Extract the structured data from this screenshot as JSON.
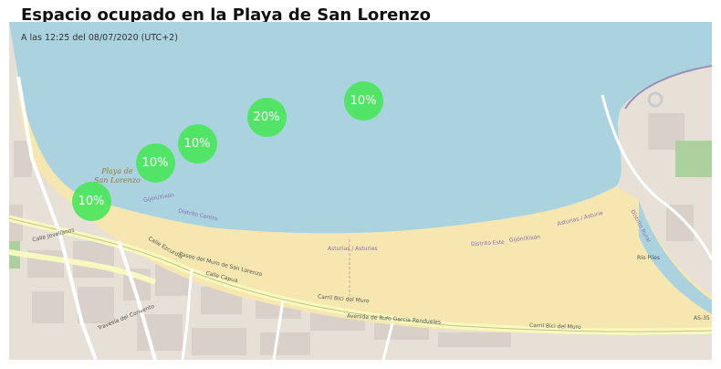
{
  "title": "Espacio ocupado en la Playa de San Lorenzo",
  "subtitle": "A las 12:25 del 08/07/2020 (UTC+2)",
  "colors": {
    "sea": "#aad3df",
    "beach": "#f6e7b0",
    "urban": "#e6e0d7",
    "marker": "#48e65a"
  },
  "place_label": [
    "Playa de",
    "San Lorenzo"
  ],
  "map_labels": {
    "gijon_1": "Gijón/Xixón",
    "distrito_centro": "Distrito Centro",
    "asturias_1": "Asturias / Asturies",
    "distrito_este": "Distrito Este",
    "gijon_2": "Gijón/Xixón",
    "asturias_2": "Asturias / Asturie",
    "distrito_rural": "Distrito Rural",
    "calle_jovellanos": "Calle Jovellanos",
    "paseo_muro": "Paseo del Muro de San Lorenzo",
    "carril_bici": "Carril Bici del Muro",
    "avenida_rufo": "Avenida de Rufo García Rendueles",
    "calle_ezcurdia": "Calle Ezcurdia",
    "calle_capua": "Calle Capua",
    "travesia_convento": "Travesía del Convento",
    "carril_bici_2": "Carril Bici del Muro",
    "as35": "AS-35",
    "el_piles": "Río Piles"
  },
  "markers": [
    {
      "name": "marker-1",
      "label": "10%"
    },
    {
      "name": "marker-2",
      "label": "10%"
    },
    {
      "name": "marker-3",
      "label": "10%"
    },
    {
      "name": "marker-4",
      "label": "20%"
    },
    {
      "name": "marker-5",
      "label": "10%"
    }
  ]
}
